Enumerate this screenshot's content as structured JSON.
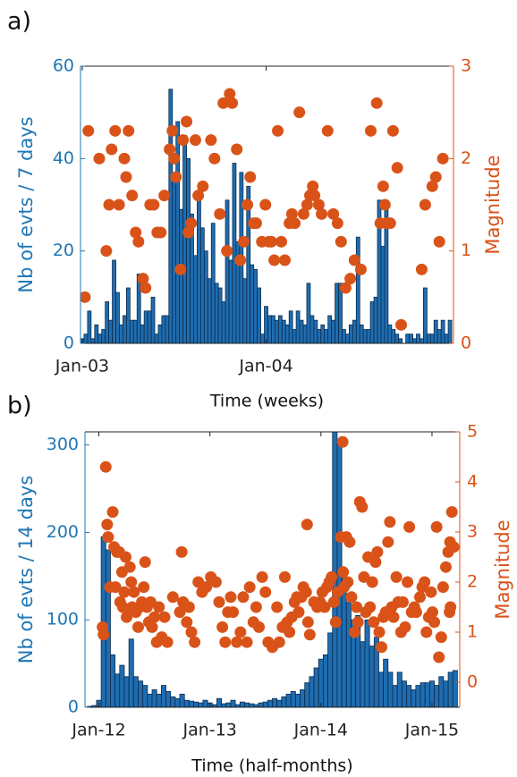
{
  "chart_data": [
    {
      "type": "bar",
      "label": "a)",
      "xlabel": "Time (weeks)",
      "ylabel": "Nb of evts / 7 days",
      "y2label": "Magnitude",
      "xlim": [
        -0.5,
        105
      ],
      "xticks": [
        {
          "value": 0,
          "label": "Jan-03"
        },
        {
          "value": 52,
          "label": "Jan-04"
        }
      ],
      "ylim": [
        0,
        60
      ],
      "yticks": [
        0,
        20,
        40,
        60
      ],
      "y2lim": [
        0,
        3
      ],
      "y2ticks": [
        0,
        1,
        2,
        3
      ],
      "ycolor": "#1f77b4",
      "y2color": "#d95319",
      "series": [
        {
          "type": "bar",
          "color": "#1f6db0",
          "x": [
            0,
            1,
            2,
            3,
            4,
            5,
            6,
            7,
            8,
            9,
            10,
            11,
            12,
            13,
            14,
            15,
            16,
            17,
            18,
            19,
            20,
            21,
            22,
            23,
            24,
            25,
            26,
            27,
            28,
            29,
            30,
            31,
            32,
            33,
            34,
            35,
            36,
            37,
            38,
            39,
            40,
            41,
            42,
            43,
            44,
            45,
            46,
            47,
            48,
            49,
            50,
            51,
            52,
            53,
            54,
            55,
            56,
            57,
            58,
            59,
            60,
            61,
            62,
            63,
            64,
            65,
            66,
            67,
            68,
            69,
            70,
            71,
            72,
            73,
            74,
            75,
            76,
            77,
            78,
            79,
            80,
            81,
            82,
            83,
            84,
            85,
            86,
            87,
            88,
            89,
            90,
            91,
            92,
            93,
            94,
            95,
            96,
            97,
            98,
            99,
            100,
            101,
            102,
            103,
            104
          ],
          "values": [
            1,
            2,
            7,
            1,
            4,
            2,
            3,
            9,
            5,
            18,
            11,
            4,
            6,
            12,
            5,
            5,
            15,
            4,
            7,
            7,
            10,
            2,
            4,
            6,
            6,
            55,
            36,
            48,
            29,
            45,
            40,
            28,
            19,
            31,
            25,
            20,
            14,
            26,
            13,
            12,
            9,
            31,
            18,
            39,
            22,
            37,
            14,
            34,
            17,
            16,
            12,
            2,
            8,
            6,
            6,
            5,
            6,
            5,
            4,
            7,
            3,
            7,
            5,
            4,
            13,
            6,
            5,
            3,
            4,
            3,
            6,
            5,
            13,
            13,
            3,
            2,
            4,
            5,
            23,
            4,
            3,
            3,
            9,
            10,
            31,
            21,
            31,
            4,
            3,
            2,
            1,
            0,
            2,
            2,
            1,
            2,
            1,
            12,
            2,
            2,
            5,
            3,
            5,
            2,
            5
          ]
        },
        {
          "type": "scatter",
          "color": "#d95319",
          "axis": "y2",
          "x": [
            0.75,
            1.7,
            4.8,
            6.8,
            7.6,
            8.3,
            9.3,
            10.4,
            11.9,
            12.4,
            13.1,
            14.1,
            15.1,
            15.9,
            17.2,
            17.9,
            19.2,
            20.2,
            21.2,
            22.2,
            23.2,
            24.7,
            25.5,
            26,
            26.5,
            27.8,
            28.5,
            29.5,
            30,
            30.8,
            32,
            32.8,
            34.1,
            36.4,
            37.4,
            38.9,
            39.9,
            40.9,
            41.7,
            42.4,
            43.7,
            44.7,
            45.7,
            46.7,
            47.5,
            48.5,
            49.2,
            50.8,
            51.8,
            52.8,
            53.5,
            54.3,
            55.3,
            56.3,
            57.3,
            58.6,
            59.3,
            60.1,
            61.4,
            62.6,
            63.6,
            64.4,
            65.2,
            65.7,
            66.9,
            67.7,
            69.4,
            71,
            72.2,
            73.2,
            74.5,
            75.8,
            77,
            78.8,
            81.6,
            83.3,
            84.3,
            85.1,
            85.6,
            86.1,
            87.1,
            87.9,
            89.1,
            90.2,
            96,
            97,
            99,
            100,
            101,
            102
          ],
          "values": [
            0.5,
            2.3,
            2,
            1,
            1.5,
            2.1,
            2.3,
            1.5,
            2,
            1.8,
            2.3,
            1.6,
            1.2,
            1.1,
            0.7,
            0.6,
            1.5,
            1.5,
            1.2,
            1.2,
            1.6,
            2.1,
            2.3,
            2,
            1.8,
            0.8,
            2.2,
            2.4,
            1.2,
            1.3,
            2.2,
            1.6,
            1.7,
            2.2,
            2,
            1.4,
            2.6,
            1,
            2.7,
            2.6,
            2.1,
            0.9,
            1.1,
            1.5,
            1.8,
            1.3,
            1.3,
            1.1,
            1.5,
            1.1,
            1.1,
            0.9,
            2.3,
            1.1,
            0.9,
            1.3,
            1.4,
            1.3,
            2.5,
            1.4,
            1.5,
            1.6,
            1.7,
            1.6,
            1.5,
            1.4,
            2.3,
            1.4,
            1.3,
            1.1,
            0.6,
            0.7,
            0.9,
            0.8,
            2.3,
            2.6,
            1.3,
            1.7,
            1.5,
            1.3,
            1.3,
            2.3,
            1.9,
            0.2,
            0.8,
            1.5,
            1.7,
            1.8,
            1.1,
            2
          ]
        }
      ]
    },
    {
      "type": "bar",
      "label": "b)",
      "xlabel": "Time (half-months)",
      "ylabel": "Nb of evts / 14 days",
      "y2label": "Magnitude",
      "xlim": [
        -3,
        78
      ],
      "xticks": [
        {
          "value": 0,
          "label": "Jan-12"
        },
        {
          "value": 24,
          "label": "Jan-13"
        },
        {
          "value": 48,
          "label": "Jan-14"
        },
        {
          "value": 72,
          "label": "Jan-15"
        }
      ],
      "ylim": [
        0,
        315
      ],
      "yticks": [
        0,
        100,
        200,
        300
      ],
      "y2lim": [
        -0.5,
        5
      ],
      "y2ticks": [
        0,
        1,
        2,
        3,
        4,
        5
      ],
      "ycolor": "#1f77b4",
      "y2color": "#d95319",
      "series": [
        {
          "type": "bar",
          "color": "#1f6db0",
          "x": [
            -2,
            -1,
            0,
            1,
            2,
            3,
            4,
            5,
            6,
            7,
            8,
            9,
            10,
            11,
            12,
            13,
            14,
            15,
            16,
            17,
            18,
            19,
            20,
            21,
            22,
            23,
            24,
            25,
            26,
            27,
            28,
            29,
            30,
            31,
            32,
            33,
            34,
            35,
            36,
            37,
            38,
            39,
            40,
            41,
            42,
            43,
            44,
            45,
            46,
            47,
            48,
            49,
            50,
            51,
            52,
            53,
            54,
            55,
            56,
            57,
            58,
            59,
            60,
            61,
            62,
            63,
            64,
            65,
            66,
            67,
            68,
            69,
            70,
            71,
            72,
            73,
            74,
            75,
            76,
            77
          ],
          "values": [
            1,
            2,
            8,
            195,
            180,
            60,
            38,
            48,
            35,
            78,
            35,
            30,
            25,
            15,
            20,
            15,
            25,
            18,
            12,
            10,
            15,
            8,
            7,
            6,
            5,
            8,
            5,
            3,
            10,
            4,
            5,
            8,
            3,
            6,
            5,
            4,
            3,
            5,
            6,
            8,
            10,
            8,
            12,
            15,
            18,
            15,
            20,
            28,
            35,
            45,
            55,
            60,
            85,
            320,
            300,
            150,
            120,
            100,
            105,
            75,
            100,
            70,
            80,
            40,
            55,
            40,
            25,
            40,
            30,
            25,
            20,
            25,
            28,
            28,
            30,
            25,
            35,
            30,
            40,
            42
          ]
        },
        {
          "type": "scatter",
          "color": "#d95319",
          "axis": "y2",
          "x": [
            0.8,
            1,
            1.5,
            1.8,
            2,
            2.4,
            3,
            3.3,
            3.6,
            3.9,
            4.4,
            4.6,
            5,
            5.2,
            5.5,
            5.8,
            6,
            6.3,
            6.7,
            7,
            7.2,
            7.6,
            8,
            8.5,
            8.8,
            9.3,
            9.7,
            10,
            10.4,
            10.8,
            11.2,
            11.5,
            12,
            12.5,
            13,
            13.6,
            14.2,
            14.8,
            16,
            17.9,
            17.5,
            18.2,
            19,
            19.5,
            20,
            20.7,
            21.5,
            22.3,
            23.2,
            24.2,
            25.3,
            26,
            26.7,
            27.3,
            27.9,
            28.5,
            29,
            29.8,
            30.6,
            31.2,
            32,
            32.6,
            33.4,
            34,
            34.6,
            35.3,
            36,
            36.6,
            37.5,
            38.5,
            39,
            39.7,
            40.2,
            40.7,
            41.2,
            41.7,
            42.3,
            42.8,
            43.2,
            43.8,
            44.2,
            44.8,
            45.2,
            45.6,
            45,
            46.5,
            47.2,
            47.8,
            48.3,
            48.8,
            49.3,
            49.8,
            50.3,
            50.8,
            51.2,
            51.6,
            52.7,
            52.3,
            52.8,
            53,
            53.5,
            53.8,
            54.2,
            54.6,
            55.3,
            55.7,
            56,
            56.4,
            56.9,
            57.3,
            57.7,
            58.2,
            58.6,
            59.1,
            59.4,
            59.8,
            60.2,
            60.6,
            61.1,
            61.5,
            62,
            62.5,
            62.9,
            63.3,
            63.7,
            64.3,
            64.7,
            65.3,
            65.7,
            66.2,
            66.7,
            67.1,
            67.6,
            68.2,
            68.6,
            69.4,
            69.9,
            70.4,
            70.8,
            71.3,
            71.8,
            72.1,
            72.5,
            73,
            73.5,
            74,
            74.4,
            75,
            75.5,
            75.9,
            76.3,
            76.7,
            76,
            75.8
          ],
          "values": [
            1.1,
            0.95,
            4.3,
            3.15,
            2.9,
            1.9,
            3.4,
            2.7,
            1.9,
            2.6,
            2.6,
            1.6,
            2.2,
            1.5,
            1.8,
            2.5,
            1.3,
            1.4,
            2.3,
            2,
            1.5,
            1.8,
            1.4,
            1.1,
            1.5,
            1.6,
            1.9,
            2.4,
            1.5,
            1.2,
            1.6,
            1.1,
            1.3,
            0.8,
            1.5,
            0.9,
            1.3,
            0.8,
            1.7,
            2.6,
            1.4,
            1.6,
            1.2,
            1.5,
            1,
            0.8,
            2,
            1.8,
            1.9,
            2.1,
            2,
            1.6,
            1.1,
            0.8,
            1.4,
            1.7,
            1.4,
            0.8,
            1,
            1.7,
            0.8,
            1.9,
            1.2,
            1.5,
            1.1,
            2.1,
            1.8,
            0.8,
            0.7,
            1.5,
            0.8,
            1.1,
            2.1,
            1.2,
            1,
            1.3,
            1.6,
            1.7,
            1.4,
            1.7,
            1.9,
            1.8,
            1.2,
            0.95,
            3.15,
            1.6,
            1.5,
            1.6,
            1.8,
            1.5,
            1.9,
            2,
            2.1,
            1.6,
            1.2,
            1.8,
            4.8,
            2.9,
            2.2,
            1.9,
            2.9,
            2,
            2.8,
            1.7,
            1,
            1.5,
            1.2,
            3.6,
            3.5,
            2.1,
            1.4,
            2.5,
            1.5,
            2,
            1.2,
            2.4,
            2.6,
            1,
            0.7,
            1.3,
            1.4,
            2.8,
            3.2,
            1.5,
            1.3,
            2.1,
            1.6,
            1,
            1.6,
            1.1,
            2,
            3.1,
            1.4,
            1.5,
            1.4,
            1.7,
            1.9,
            2,
            1,
            1.3,
            1.8,
            1.4,
            1.2,
            3.1,
            0.5,
            0.9,
            1.9,
            2.3,
            2.6,
            2.8,
            3.4,
            2.7,
            1.5,
            1.4
          ]
        }
      ]
    }
  ]
}
